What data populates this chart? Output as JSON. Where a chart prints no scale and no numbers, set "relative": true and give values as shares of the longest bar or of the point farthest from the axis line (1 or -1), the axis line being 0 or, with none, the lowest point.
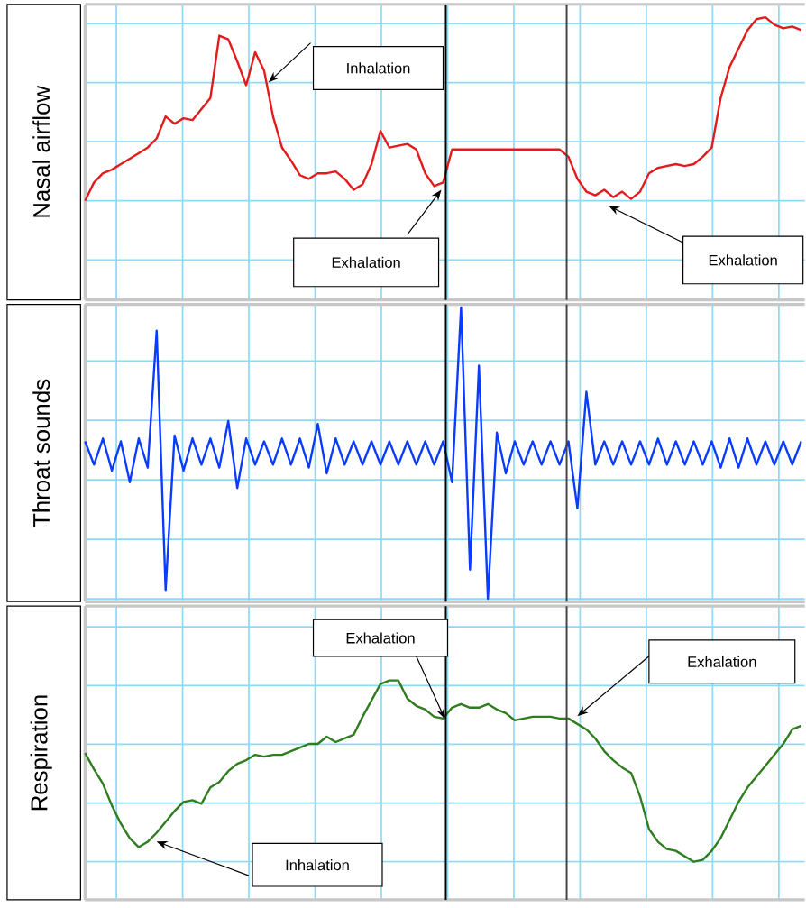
{
  "chart_data": [
    {
      "type": "line",
      "ylabel": "Nasal airflow",
      "relative": true,
      "grid": true,
      "color": "#e31b1b",
      "categories": [
        null,
        null,
        null,
        null,
        null,
        null,
        null,
        null,
        null,
        null,
        null,
        null,
        null,
        null,
        null,
        null,
        null,
        null,
        null,
        null,
        null,
        null,
        null,
        null,
        null,
        null,
        null,
        null,
        null,
        null,
        null,
        null,
        null,
        null,
        null,
        null,
        null,
        null,
        null,
        null,
        null,
        null,
        null,
        null,
        null,
        null,
        null,
        null,
        null,
        null,
        null,
        null,
        null,
        null,
        null,
        null,
        null,
        null,
        null,
        null,
        null,
        null,
        null,
        null,
        null,
        null,
        null,
        null,
        null,
        null,
        null,
        null,
        null,
        null,
        null,
        null,
        null,
        null,
        null,
        null,
        null
      ],
      "values": [
        0,
        0.1,
        0.15,
        0.17,
        0.2,
        0.23,
        0.26,
        0.29,
        0.34,
        0.46,
        0.42,
        0.45,
        0.44,
        0.5,
        0.56,
        0.9,
        0.88,
        0.76,
        0.63,
        0.81,
        0.71,
        0.46,
        0.29,
        0.22,
        0.14,
        0.12,
        0.15,
        0.15,
        0.16,
        0.12,
        0.06,
        0.09,
        0.2,
        0.38,
        0.29,
        0.3,
        0.31,
        0.28,
        0.15,
        0.08,
        0.1,
        0.28,
        0.28,
        0.28,
        0.28,
        0.28,
        0.28,
        0.28,
        0.28,
        0.28,
        0.28,
        0.28,
        0.28,
        0.28,
        0.24,
        0.12,
        0.05,
        0.03,
        0.06,
        0.02,
        0.05,
        0.01,
        0.05,
        0.15,
        0.18,
        0.19,
        0.2,
        0.19,
        0.2,
        0.24,
        0.29,
        0.56,
        0.73,
        0.83,
        0.93,
        0.99,
        1,
        0.96,
        0.94,
        0.95,
        0.93
      ],
      "annotations": [
        "Inhalation",
        "Exhalation",
        "Exhalation"
      ]
    },
    {
      "type": "line",
      "ylabel": "Throat sounds",
      "relative": true,
      "grid": true,
      "color": "#0a3cff",
      "categories": [
        null,
        null,
        null,
        null,
        null,
        null,
        null,
        null,
        null,
        null,
        null,
        null,
        null,
        null,
        null,
        null,
        null,
        null,
        null,
        null,
        null,
        null,
        null,
        null,
        null,
        null,
        null,
        null,
        null,
        null,
        null,
        null,
        null,
        null,
        null,
        null,
        null,
        null,
        null,
        null,
        null,
        null,
        null,
        null,
        null,
        null,
        null,
        null,
        null,
        null,
        null,
        null,
        null,
        null,
        null,
        null,
        null,
        null,
        null,
        null,
        null,
        null,
        null,
        null,
        null,
        null,
        null,
        null,
        null,
        null,
        null,
        null,
        null,
        null,
        null,
        null,
        null,
        null,
        null,
        null,
        null
      ],
      "values": [
        0.54,
        0.46,
        0.55,
        0.44,
        0.54,
        0.4,
        0.55,
        0.45,
        0.92,
        0.03,
        0.56,
        0.44,
        0.55,
        0.46,
        0.55,
        0.45,
        0.61,
        0.38,
        0.55,
        0.46,
        0.54,
        0.46,
        0.55,
        0.46,
        0.55,
        0.45,
        0.6,
        0.43,
        0.55,
        0.46,
        0.54,
        0.46,
        0.54,
        0.46,
        0.54,
        0.46,
        0.54,
        0.46,
        0.54,
        0.46,
        0.54,
        0.4,
        1,
        0.1,
        0.8,
        0,
        0.57,
        0.43,
        0.54,
        0.46,
        0.54,
        0.46,
        0.54,
        0.46,
        0.54,
        0.31,
        0.71,
        0.46,
        0.54,
        0.46,
        0.54,
        0.46,
        0.54,
        0.46,
        0.55,
        0.46,
        0.54,
        0.46,
        0.54,
        0.46,
        0.54,
        0.45,
        0.55,
        0.45,
        0.55,
        0.46,
        0.54,
        0.46,
        0.54,
        0.46,
        0.54
      ]
    },
    {
      "type": "line",
      "ylabel": "Respiration",
      "relative": true,
      "grid": true,
      "color": "#2e7d1e",
      "categories": [
        null,
        null,
        null,
        null,
        null,
        null,
        null,
        null,
        null,
        null,
        null,
        null,
        null,
        null,
        null,
        null,
        null,
        null,
        null,
        null,
        null,
        null,
        null,
        null,
        null,
        null,
        null,
        null,
        null,
        null,
        null,
        null,
        null,
        null,
        null,
        null,
        null,
        null,
        null,
        null,
        null,
        null,
        null,
        null,
        null,
        null,
        null,
        null,
        null,
        null,
        null,
        null,
        null,
        null,
        null,
        null,
        null,
        null,
        null,
        null,
        null,
        null,
        null,
        null,
        null,
        null,
        null,
        null,
        null,
        null,
        null,
        null,
        null,
        null,
        null,
        null,
        null,
        null,
        null,
        null,
        null
      ],
      "values": [
        0.6,
        0.51,
        0.43,
        0.31,
        0.21,
        0.13,
        0.08,
        0.11,
        0.16,
        0.22,
        0.28,
        0.33,
        0.34,
        0.32,
        0.41,
        0.44,
        0.5,
        0.54,
        0.56,
        0.59,
        0.58,
        0.59,
        0.59,
        0.61,
        0.63,
        0.65,
        0.65,
        0.69,
        0.66,
        0.68,
        0.7,
        0.8,
        0.89,
        0.98,
        1,
        1,
        0.9,
        0.86,
        0.84,
        0.8,
        0.79,
        0.85,
        0.87,
        0.85,
        0.85,
        0.87,
        0.84,
        0.82,
        0.78,
        0.79,
        0.8,
        0.8,
        0.8,
        0.79,
        0.79,
        0.76,
        0.73,
        0.68,
        0.61,
        0.56,
        0.52,
        0.49,
        0.36,
        0.18,
        0.11,
        0.07,
        0.06,
        0.03,
        0,
        0.01,
        0.06,
        0.13,
        0.23,
        0.33,
        0.41,
        0.47,
        0.53,
        0.59,
        0.65,
        0.73,
        0.75
      ],
      "annotations": [
        "Exhalation",
        "Exhalation",
        "Inhalation"
      ]
    }
  ]
}
